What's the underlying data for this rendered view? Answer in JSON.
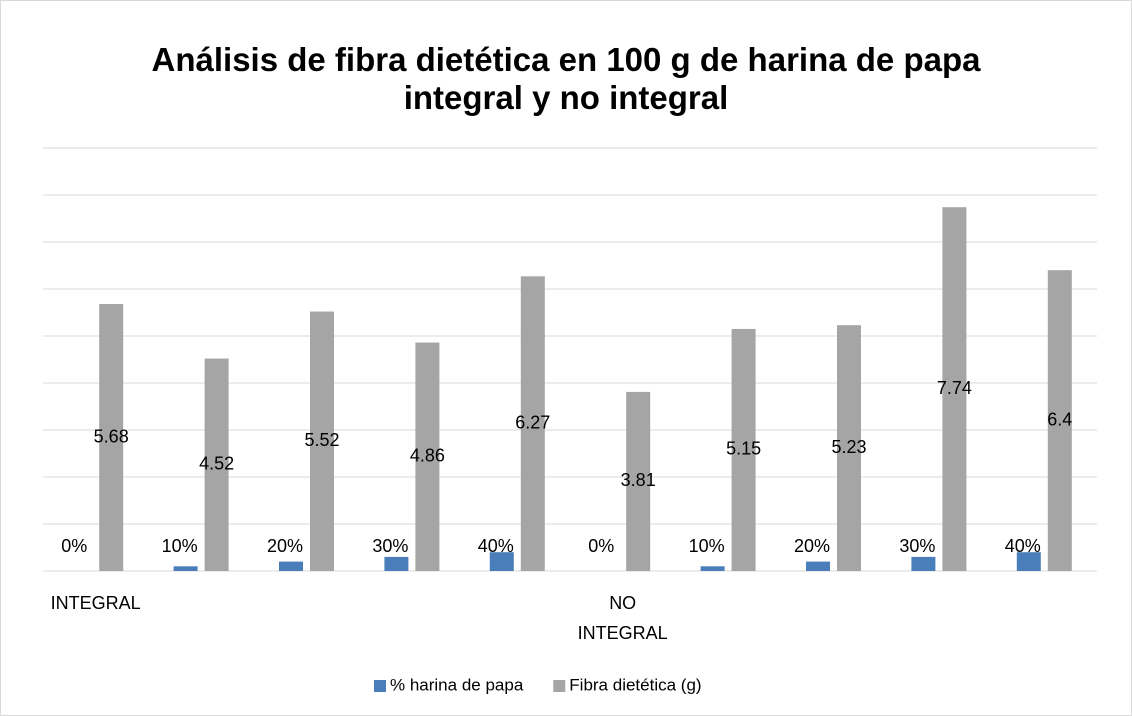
{
  "chart_data": {
    "type": "bar",
    "title": "Análisis de fibra dietética en 100 g de harina de papa integral y no integral",
    "categories": [
      "INTEGRAL",
      null,
      null,
      null,
      null,
      "NO INTEGRAL",
      null,
      null,
      null,
      null
    ],
    "series": [
      {
        "name": "% harina de papa",
        "color": "#4a7ebb",
        "values": [
          0,
          0.1,
          0.2,
          0.3,
          0.4,
          0,
          0.1,
          0.2,
          0.3,
          0.4
        ],
        "value_labels": [
          "0%",
          "10%",
          "20%",
          "30%",
          "40%",
          "0%",
          "10%",
          "20%",
          "30%",
          "40%"
        ]
      },
      {
        "name": "Fibra dietética (g)",
        "color": "#a5a5a5",
        "values": [
          5.68,
          4.52,
          5.52,
          4.86,
          6.27,
          3.81,
          5.15,
          5.23,
          7.74,
          6.4
        ]
      }
    ],
    "ylim": [
      0,
      9
    ],
    "yticks": [
      0,
      1,
      2,
      3,
      4,
      5,
      6,
      7,
      8,
      9
    ],
    "grid": true,
    "legend": "bottom"
  }
}
